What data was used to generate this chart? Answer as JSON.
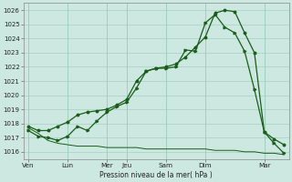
{
  "background_color": "#cce8e0",
  "plot_bg_color": "#cce8e0",
  "grid_color": "#99ccbb",
  "line_color": "#1a5c1a",
  "xlabel": "Pression niveau de la mer( hPa )",
  "ylim": [
    1015.5,
    1026.5
  ],
  "yticks": [
    1016,
    1017,
    1018,
    1019,
    1020,
    1021,
    1022,
    1023,
    1024,
    1025,
    1026
  ],
  "series1_y": [
    1017.5,
    1017.1,
    1017.0,
    1016.8,
    1017.1,
    1017.8,
    1017.5,
    1018.2,
    1018.8,
    1019.2,
    1019.5,
    1020.5,
    1021.7,
    1021.9,
    1021.9,
    1022.0,
    1023.2,
    1023.1,
    1025.1,
    1025.7,
    1024.8,
    1024.4,
    1023.1,
    1020.4,
    1017.4,
    1016.6,
    1015.9
  ],
  "series2_y": [
    1017.7,
    1017.3,
    1016.8,
    1016.6,
    1016.5,
    1016.4,
    1016.4,
    1016.4,
    1016.3,
    1016.3,
    1016.3,
    1016.3,
    1016.2,
    1016.2,
    1016.2,
    1016.2,
    1016.2,
    1016.2,
    1016.2,
    1016.1,
    1016.1,
    1016.1,
    1016.0,
    1016.0,
    1015.9,
    1015.9,
    1015.8
  ],
  "series3_y": [
    1017.8,
    1017.5,
    1017.5,
    1017.8,
    1018.1,
    1018.6,
    1018.8,
    1018.9,
    1019.0,
    1019.3,
    1019.7,
    1021.0,
    1021.7,
    1021.9,
    1022.0,
    1022.2,
    1022.7,
    1023.4,
    1024.1,
    1025.8,
    1026.0,
    1025.9,
    1024.4,
    1023.0,
    1017.4,
    1016.9,
    1016.5
  ],
  "n_points": 27,
  "day_labels": [
    "Ven",
    "Lun",
    "Mer",
    "Jeu",
    "Sam",
    "Dim",
    "Mar"
  ],
  "day_x_pos": [
    0,
    4,
    8,
    10,
    14,
    18,
    24
  ],
  "vline_positions": [
    0,
    4,
    8,
    10,
    14,
    18,
    24
  ]
}
